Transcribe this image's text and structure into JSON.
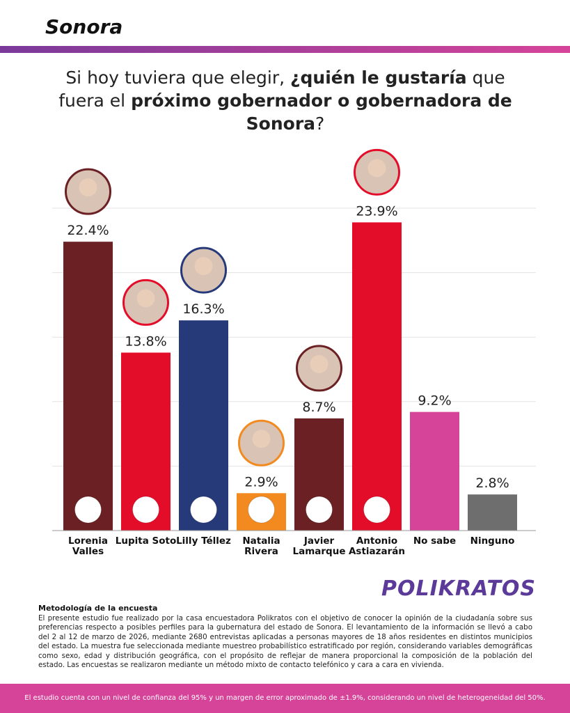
{
  "header": {
    "title": "Sonora"
  },
  "question": [
    {
      "text": "Si hoy tuviera que elegir, ",
      "bold": false
    },
    {
      "text": "¿quién le gustaría",
      "bold": true
    },
    {
      "text": " que fuera el ",
      "bold": false
    },
    {
      "text": "próximo gobernador o gobernadora de Sonora",
      "bold": true
    },
    {
      "text": "?",
      "bold": false
    }
  ],
  "chart_data": {
    "type": "bar",
    "categories": [
      "Lorenia Valles",
      "Lupita Soto",
      "Lilly Téllez",
      "Natalia Rivera",
      "Javier Lamarque",
      "Antonio Astiazarán",
      "No sabe",
      "Ninguno"
    ],
    "values": [
      22.4,
      13.8,
      16.3,
      2.9,
      8.7,
      23.9,
      9.2,
      2.8
    ],
    "value_labels": [
      "22.4%",
      "13.8%",
      "16.3%",
      "2.9%",
      "8.7%",
      "23.9%",
      "9.2%",
      "2.8%"
    ],
    "colors": [
      "#6b2024",
      "#e30d2a",
      "#263a7a",
      "#f28a1f",
      "#6b2024",
      "#e30d2a",
      "#d6449a",
      "#6e6e6e"
    ],
    "ylim": [
      0,
      25
    ],
    "yticks": [
      0,
      5,
      10,
      15,
      20,
      25
    ],
    "grid": true
  },
  "brand": "POLIKRATOS",
  "methodology": {
    "title": "Metodología de la encuesta",
    "text": "El presente estudio fue realizado por la casa encuestadora Polikratos con el objetivo de conocer la opinión de la ciudadanía sobre sus preferencias respecto a posibles perfiles para la gubernatura del estado de Sonora. El levantamiento de la información se llevó a cabo del 2 al 12 de marzo de 2026, mediante 2680 entrevistas aplicadas a personas mayores de 18 años residentes en distintos municipios del estado. La muestra fue seleccionada mediante muestreo probabilístico estratificado por región, considerando variables demográficas como sexo, edad y distribución geográfica, con el propósito de reflejar de manera proporcional la composición de la población del estado. Las encuestas se realizaron mediante un método mixto de contacto telefónico y cara a cara en vivienda."
  },
  "footer": "El estudio cuenta con un nivel de confianza del 95% y un margen de error aproximado de ±1.9%, considerando un nivel de heterogeneidad del 50%."
}
